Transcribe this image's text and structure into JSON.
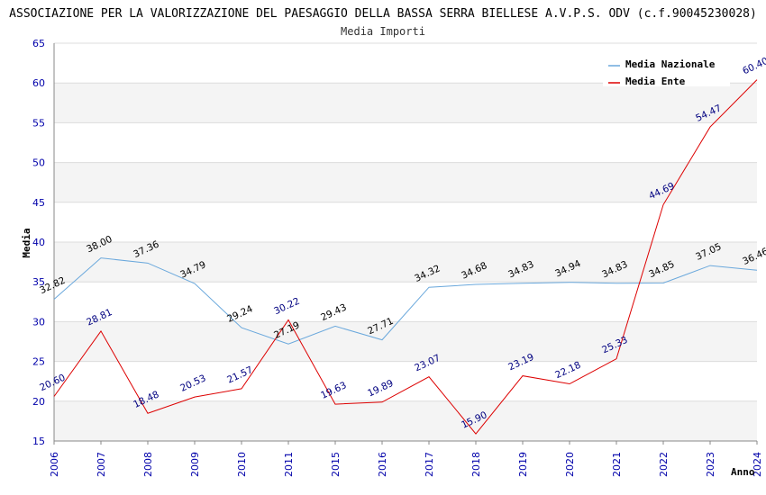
{
  "chart_data": {
    "type": "line",
    "title": "ASSOCIAZIONE PER LA VALORIZZAZIONE DEL PAESAGGIO DELLA BASSA SERRA BIELLESE A.V.P.S. ODV (c.f.90045230028)",
    "subtitle": "Media Importi",
    "xlabel": "Anno",
    "ylabel": "Media",
    "ylim": [
      15,
      65
    ],
    "yticks": [
      15,
      20,
      25,
      30,
      35,
      40,
      45,
      50,
      55,
      60,
      65
    ],
    "categories": [
      "2006",
      "2007",
      "2008",
      "2009",
      "2010",
      "2011",
      "2015",
      "2016",
      "2017",
      "2018",
      "2019",
      "2020",
      "2021",
      "2022",
      "2023",
      "2024"
    ],
    "series": [
      {
        "name": "Media Nazionale",
        "color": "#6aa8dc",
        "values": [
          32.82,
          38.0,
          37.36,
          34.79,
          29.24,
          27.19,
          29.43,
          27.71,
          34.32,
          34.68,
          34.83,
          34.94,
          34.83,
          34.85,
          37.05,
          36.46
        ],
        "labels": [
          "32.82",
          "38.00",
          "37.36",
          "34.79",
          "29.24",
          "27.19",
          "29.43",
          "27.71",
          "34.32",
          "34.68",
          "34.83",
          "34.94",
          "34.83",
          "34.85",
          "37.05",
          "36.46"
        ]
      },
      {
        "name": "Media Ente",
        "color": "#dd0000",
        "values": [
          20.6,
          28.81,
          18.48,
          20.53,
          21.57,
          30.22,
          19.63,
          19.89,
          23.07,
          15.9,
          23.19,
          22.18,
          25.33,
          44.69,
          54.47,
          60.4
        ],
        "labels": [
          "20.60",
          "28.81",
          "18.48",
          "20.53",
          "21.57",
          "30.22",
          "19.63",
          "19.89",
          "23.07",
          "15.90",
          "23.19",
          "22.18",
          "25.33",
          "44.69",
          "54.47",
          "60.40"
        ]
      }
    ],
    "legend": "top-right",
    "grid": true
  }
}
